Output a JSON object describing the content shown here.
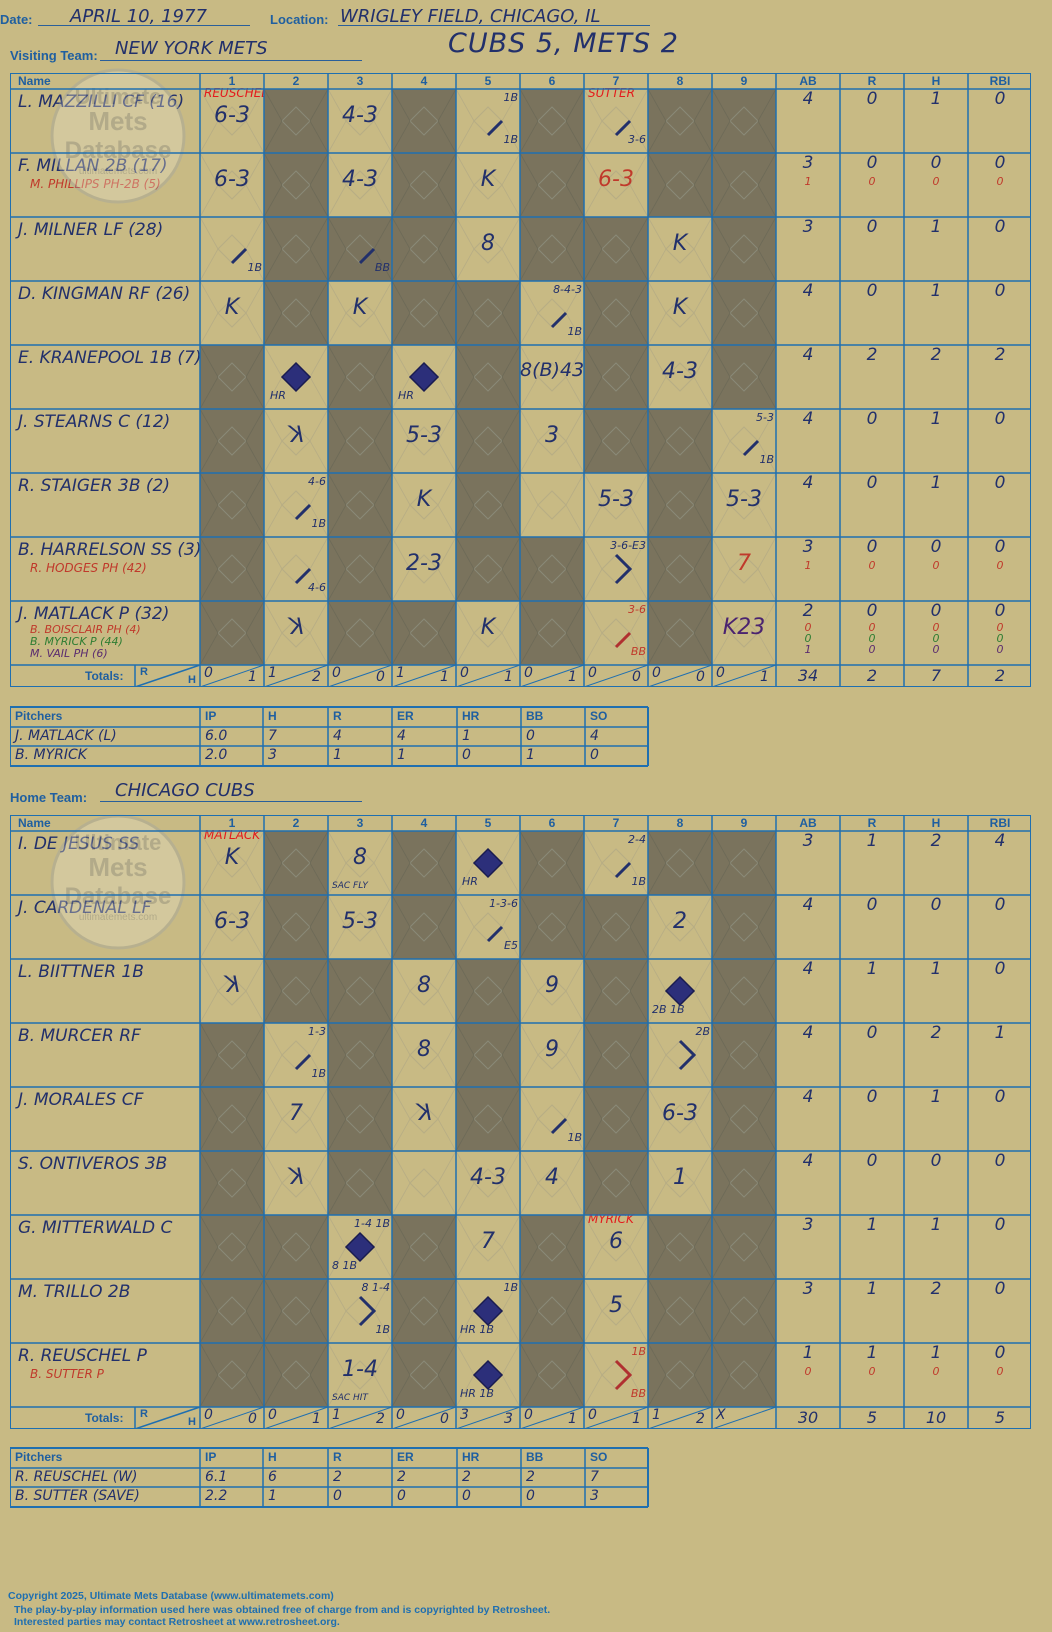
{
  "header": {
    "date_label": "Date:",
    "date": "APRIL 10, 1977",
    "location_label": "Location:",
    "location": "WRIGLEY FIELD, CHICAGO, IL",
    "visiting_label": "Visiting Team:",
    "visiting_team": "NEW YORK METS",
    "score_title": "CUBS 5, METS 2",
    "home_label": "Home Team:",
    "home_team": "CHICAGO CUBS"
  },
  "watermark": {
    "line1": "Ultimate",
    "line2": "Mets",
    "line3": "Database",
    "url": "ultimatemets.com"
  },
  "grid_headers": {
    "name": "Name",
    "innings": [
      "1",
      "2",
      "3",
      "4",
      "5",
      "6",
      "7",
      "8",
      "9"
    ],
    "ab": "AB",
    "r": "R",
    "h": "H",
    "rbi": "RBI",
    "totals": "Totals:",
    "r_small": "R",
    "h_small": "H"
  },
  "visitors": {
    "batters": [
      {
        "name": "L. MAZZILLI CF (16)",
        "subs": [],
        "stats": [
          "4",
          "0",
          "1",
          "0"
        ],
        "sub_stats": []
      },
      {
        "name": "F. MILLAN 2B (17)",
        "subs": [
          {
            "name": "M. PHILLIPS PH-2B (5)",
            "color": "#c0392b"
          }
        ],
        "stats": [
          "3",
          "0",
          "0",
          "0"
        ],
        "sub_stats": [
          [
            "1",
            "0",
            "0",
            "0"
          ]
        ]
      },
      {
        "name": "J. MILNER LF (28)",
        "subs": [],
        "stats": [
          "3",
          "0",
          "1",
          "0"
        ],
        "sub_stats": []
      },
      {
        "name": "D. KINGMAN RF (26)",
        "subs": [],
        "stats": [
          "4",
          "0",
          "1",
          "0"
        ],
        "sub_stats": []
      },
      {
        "name": "E. KRANEPOOL 1B (7)",
        "subs": [],
        "stats": [
          "4",
          "2",
          "2",
          "2"
        ],
        "sub_stats": []
      },
      {
        "name": "J. STEARNS C (12)",
        "subs": [],
        "stats": [
          "4",
          "0",
          "1",
          "0"
        ],
        "sub_stats": []
      },
      {
        "name": "R. STAIGER 3B (2)",
        "subs": [],
        "stats": [
          "4",
          "0",
          "1",
          "0"
        ],
        "sub_stats": []
      },
      {
        "name": "B. HARRELSON SS (3)",
        "subs": [
          {
            "name": "R. HODGES PH (42)",
            "color": "#c0392b"
          }
        ],
        "stats": [
          "3",
          "0",
          "0",
          "0"
        ],
        "sub_stats": [
          [
            "1",
            "0",
            "0",
            "0"
          ]
        ]
      },
      {
        "name": "J. MATLACK P (32)",
        "subs": [
          {
            "name": "B. BOISCLAIR PH (4)",
            "color": "#c0392b"
          },
          {
            "name": "B. MYRICK P (44)",
            "color": "#2e7d32"
          },
          {
            "name": "M. VAIL PH (6)",
            "color": "#5b2c6f"
          }
        ],
        "stats": [
          "2",
          "0",
          "0",
          "0"
        ],
        "sub_stats": [
          [
            "0",
            "0",
            "0",
            "0"
          ],
          [
            "0",
            "0",
            "0",
            "0"
          ],
          [
            "1",
            "0",
            "0",
            "0"
          ]
        ]
      }
    ],
    "pitcher_marks": [
      {
        "row": 0,
        "inning": 1,
        "text": "REUSCHEL"
      },
      {
        "row": 0,
        "inning": 7,
        "text": "SUTTER"
      }
    ],
    "totals": {
      "innings": [
        [
          "0",
          "1"
        ],
        [
          "1",
          "2"
        ],
        [
          "0",
          "0"
        ],
        [
          "1",
          "1"
        ],
        [
          "0",
          "1"
        ],
        [
          "0",
          "1"
        ],
        [
          "0",
          "0"
        ],
        [
          "0",
          "0"
        ],
        [
          "0",
          "1"
        ]
      ],
      "ab": "34",
      "r": "2",
      "h": "7",
      "rbi": "2"
    },
    "pitchers": {
      "headers": [
        "Pitchers",
        "IP",
        "H",
        "R",
        "ER",
        "HR",
        "BB",
        "SO"
      ],
      "rows": [
        [
          "J. MATLACK (L)",
          "6.0",
          "7",
          "4",
          "4",
          "1",
          "0",
          "4"
        ],
        [
          "B. MYRICK",
          "2.0",
          "3",
          "1",
          "1",
          "0",
          "1",
          "0"
        ]
      ]
    }
  },
  "home": {
    "batters": [
      {
        "name": "I. DE JESUS SS",
        "subs": [],
        "stats": [
          "3",
          "1",
          "2",
          "4"
        ],
        "sub_stats": []
      },
      {
        "name": "J. CARDENAL LF",
        "subs": [],
        "stats": [
          "4",
          "0",
          "0",
          "0"
        ],
        "sub_stats": []
      },
      {
        "name": "L. BIITTNER 1B",
        "subs": [],
        "stats": [
          "4",
          "1",
          "1",
          "0"
        ],
        "sub_stats": []
      },
      {
        "name": "B. MURCER RF",
        "subs": [],
        "stats": [
          "4",
          "0",
          "2",
          "1"
        ],
        "sub_stats": []
      },
      {
        "name": "J. MORALES CF",
        "subs": [],
        "stats": [
          "4",
          "0",
          "1",
          "0"
        ],
        "sub_stats": []
      },
      {
        "name": "S. ONTIVEROS 3B",
        "subs": [],
        "stats": [
          "4",
          "0",
          "0",
          "0"
        ],
        "sub_stats": []
      },
      {
        "name": "G. MITTERWALD C",
        "subs": [],
        "stats": [
          "3",
          "1",
          "1",
          "0"
        ],
        "sub_stats": []
      },
      {
        "name": "M. TRILLO 2B",
        "subs": [],
        "stats": [
          "3",
          "1",
          "2",
          "0"
        ],
        "sub_stats": []
      },
      {
        "name": "R. REUSCHEL P",
        "subs": [
          {
            "name": "B. SUTTER P",
            "color": "#c0392b"
          }
        ],
        "stats": [
          "1",
          "1",
          "1",
          "0"
        ],
        "sub_stats": [
          [
            "0",
            "0",
            "0",
            "0"
          ]
        ]
      }
    ],
    "pitcher_marks": [
      {
        "row": 0,
        "inning": 1,
        "text": "MATLACK"
      },
      {
        "row": 6,
        "inning": 7,
        "text": "MYRICK"
      }
    ],
    "totals": {
      "innings": [
        [
          "0",
          "0"
        ],
        [
          "0",
          "1"
        ],
        [
          "1",
          "2"
        ],
        [
          "0",
          "0"
        ],
        [
          "3",
          "3"
        ],
        [
          "0",
          "1"
        ],
        [
          "0",
          "1"
        ],
        [
          "1",
          "2"
        ],
        [
          "X",
          ""
        ]
      ],
      "ab": "30",
      "r": "5",
      "h": "10",
      "rbi": "5"
    },
    "pitchers": {
      "headers": [
        "Pitchers",
        "IP",
        "H",
        "R",
        "ER",
        "HR",
        "BB",
        "SO"
      ],
      "rows": [
        [
          "R. REUSCHEL (W)",
          "6.1",
          "6",
          "2",
          "2",
          "2",
          "2",
          "7"
        ],
        [
          "B. SUTTER (SAVE)",
          "2.2",
          "1",
          "0",
          "0",
          "0",
          "0",
          "3"
        ]
      ]
    }
  },
  "footer": {
    "line1": "Copyright 2025, Ultimate Mets Database (www.ultimatemets.com)",
    "line2": "The play-by-play information used here was obtained free of charge from and is copyrighted by Retrosheet.",
    "line3": "Interested parties may contact Retrosheet at www.retrosheet.org."
  }
}
